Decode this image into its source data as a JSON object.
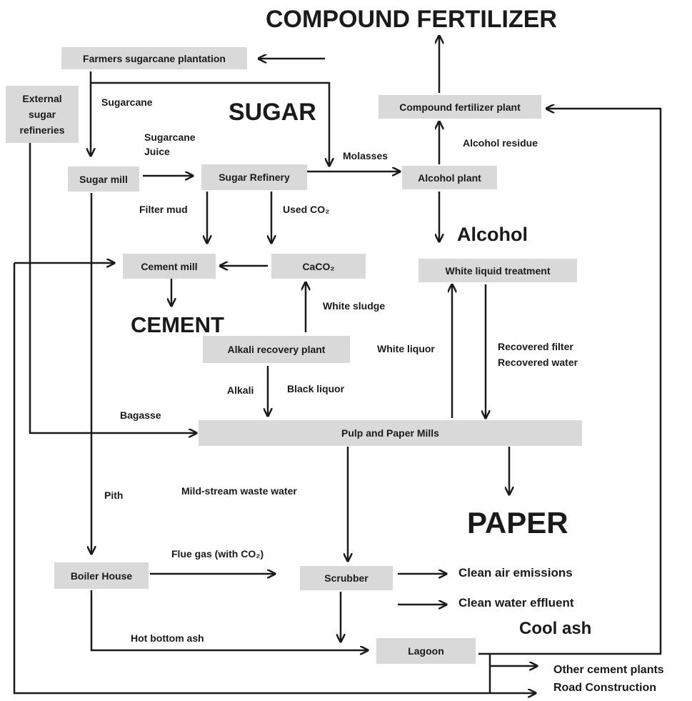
{
  "nodes": {
    "farmers": "Farmers sugarcane plantation",
    "external": [
      "External",
      "sugar",
      "refineries"
    ],
    "sugar_mill": "Sugar mill",
    "sugar_refinery": "Sugar Refinery",
    "alcohol_plant": "Alcohol plant",
    "fertilizer_plant": "Compound fertilizer plant",
    "cement_mill": "Cement mill",
    "caco2": "CaCO₂",
    "white_liquid": "White liquid treatment",
    "alkali_recovery": "Alkali recovery plant",
    "pulp_paper": "Pulp and Paper Mills",
    "boiler": "Boiler House",
    "scrubber": "Scrubber",
    "lagoon": "Lagoon"
  },
  "products": {
    "fertilizer": "COMPOUND FERTILIZER",
    "sugar": "SUGAR",
    "alcohol": "Alcohol",
    "cement": "CEMENT",
    "paper": "PAPER",
    "cool_ash": "Cool ash",
    "clean_air": "Clean air emissions",
    "clean_water": "Clean water effluent",
    "other_cement": "Other cement plants",
    "road": "Road Construction"
  },
  "flows": {
    "sugarcane": "Sugarcane",
    "juice": [
      "Sugarcane",
      "Juice"
    ],
    "molasses": "Molasses",
    "alcohol_residue": "Alcohol residue",
    "filter_mud": "Filter mud",
    "used_co2": "Used CO₂",
    "white_sludge": "White sludge",
    "white_liquor": "White liquor",
    "recovered": [
      "Recovered filter",
      "Recovered water"
    ],
    "alkali": "Alkali",
    "black_liquor": "Black liquor",
    "bagasse": "Bagasse",
    "pith": "Pith",
    "waste_water": "Mild-stream waste water",
    "flue_gas": "Flue gas (with CO₂)",
    "bottom_ash": "Hot bottom ash"
  }
}
